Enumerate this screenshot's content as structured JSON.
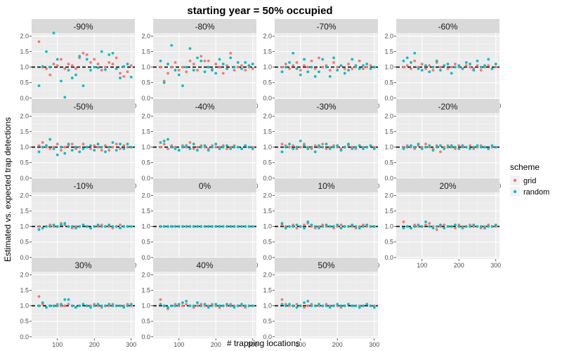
{
  "chart_data": {
    "type": "scatter",
    "title": "starting year = 50% occupied",
    "xlabel": "# trapping locations",
    "ylabel": "Estimated vs. expected trap detections",
    "xlim": [
      30,
      310
    ],
    "ylim": [
      -0.05,
      2.1
    ],
    "x_ticks": [
      100,
      200,
      300
    ],
    "y_ticks": [
      "0.0",
      "0.5",
      "1.0",
      "1.5",
      "2.0"
    ],
    "reference_line": 1.0,
    "grid": true,
    "legend": {
      "title": "scheme",
      "placement": "right",
      "entries": [
        {
          "label": "grid",
          "color": "#F8766D"
        },
        {
          "label": "random",
          "color": "#00BFC4"
        }
      ]
    },
    "x": [
      50,
      60,
      70,
      80,
      90,
      100,
      110,
      120,
      130,
      140,
      150,
      160,
      170,
      180,
      190,
      200,
      210,
      220,
      230,
      240,
      250,
      260,
      270,
      280,
      290,
      300
    ],
    "panels": [
      {
        "label": "-90%",
        "grid": [
          1.82,
          1.0,
          0.95,
          0.75,
          1.1,
          1.05,
          1.25,
          0.95,
          1.1,
          1.05,
          0.95,
          1.3,
          1.45,
          1.4,
          1.15,
          1.25,
          1.1,
          0.9,
          1.0,
          1.15,
          1.1,
          1.3,
          0.8,
          0.7,
          0.85,
          1.05
        ],
        "random": [
          0.4,
          1.02,
          1.5,
          1.0,
          2.1,
          1.25,
          0.55,
          0.03,
          0.9,
          0.65,
          0.75,
          1.35,
          0.4,
          1.25,
          0.9,
          1.0,
          0.98,
          1.5,
          0.92,
          1.4,
          1.45,
          0.95,
          0.65,
          1.02,
          1.1,
          0.68
        ]
      },
      {
        "label": "-80%",
        "grid": [
          1.0,
          0.55,
          0.8,
          1.0,
          1.15,
          0.9,
          1.0,
          0.85,
          1.2,
          1.1,
          0.9,
          1.35,
          1.2,
          1.2,
          0.95,
          1.1,
          1.0,
          0.8,
          1.05,
          1.45,
          0.9,
          1.0,
          1.05,
          0.9,
          1.0,
          0.95
        ],
        "random": [
          1.2,
          0.5,
          1.1,
          1.7,
          0.9,
          0.75,
          0.4,
          1.0,
          1.6,
          0.9,
          1.3,
          1.2,
          0.85,
          1.0,
          0.9,
          0.8,
          1.25,
          1.1,
          0.95,
          1.3,
          1.0,
          1.15,
          0.95,
          1.15,
          1.05,
          1.1
        ]
      },
      {
        "label": "-70%",
        "grid": [
          1.0,
          1.1,
          0.95,
          1.05,
          1.15,
          0.9,
          1.05,
          1.0,
          1.2,
          0.95,
          1.3,
          1.0,
          1.05,
          0.9,
          1.15,
          1.0,
          1.05,
          0.95,
          1.1,
          0.95,
          1.0,
          1.2,
          0.95,
          1.0,
          1.05,
          1.0
        ],
        "random": [
          0.85,
          1.0,
          1.15,
          1.45,
          0.95,
          0.75,
          1.25,
          0.85,
          1.0,
          0.7,
          0.85,
          1.25,
          1.0,
          0.7,
          1.3,
          0.9,
          1.05,
          0.8,
          0.9,
          1.25,
          1.05,
          0.95,
          1.05,
          1.1,
          0.95,
          1.0
        ]
      },
      {
        "label": "-60%",
        "grid": [
          1.0,
          1.05,
          0.95,
          1.2,
          1.0,
          1.1,
          0.95,
          1.05,
          0.9,
          1.15,
          1.0,
          1.05,
          0.95,
          1.0,
          1.1,
          1.0,
          0.95,
          1.05,
          1.0,
          0.95,
          1.05,
          0.9,
          1.0,
          1.05,
          0.95,
          1.0
        ],
        "random": [
          1.2,
          1.3,
          1.15,
          1.45,
          0.95,
          0.9,
          1.05,
          0.85,
          1.0,
          1.2,
          0.9,
          1.05,
          1.1,
          0.8,
          1.0,
          1.05,
          0.95,
          1.15,
          1.1,
          0.9,
          1.2,
          1.0,
          1.05,
          1.25,
          0.95,
          1.1
        ]
      },
      {
        "label": "-50%",
        "grid": [
          1.05,
          1.15,
          1.0,
          0.95,
          1.0,
          1.1,
          0.9,
          1.0,
          1.05,
          1.1,
          0.95,
          1.0,
          1.1,
          1.0,
          0.95,
          1.05,
          1.0,
          0.9,
          1.05,
          0.9,
          1.0,
          1.1,
          0.95,
          1.05,
          1.0,
          1.0
        ],
        "random": [
          0.85,
          1.0,
          1.05,
          1.25,
          0.95,
          0.75,
          1.0,
          0.8,
          1.1,
          0.9,
          1.0,
          0.85,
          0.95,
          1.0,
          1.05,
          0.9,
          1.1,
          1.0,
          0.85,
          1.0,
          1.15,
          0.9,
          1.1,
          0.95,
          1.1,
          1.0
        ]
      },
      {
        "label": "-40%",
        "grid": [
          1.0,
          1.1,
          0.95,
          1.05,
          1.0,
          0.9,
          1.05,
          1.0,
          1.15,
          0.95,
          1.0,
          1.05,
          1.0,
          0.95,
          1.05,
          1.0,
          1.0,
          1.05,
          0.95,
          1.0,
          1.05,
          1.0,
          0.95,
          1.05,
          1.0,
          1.0
        ],
        "random": [
          1.15,
          1.2,
          1.25,
          1.0,
          0.95,
          0.9,
          1.0,
          1.05,
          0.95,
          1.1,
          0.9,
          1.0,
          1.05,
          0.9,
          1.0,
          1.1,
          0.95,
          1.0,
          1.05,
          0.95,
          1.0,
          1.0,
          0.95,
          1.05,
          1.0,
          0.95
        ]
      },
      {
        "label": "-30%",
        "grid": [
          1.1,
          1.05,
          1.0,
          1.05,
          0.95,
          1.0,
          1.1,
          1.0,
          0.95,
          1.05,
          1.0,
          1.1,
          0.95,
          1.0,
          1.05,
          1.0,
          0.95,
          1.0,
          1.05,
          1.0,
          0.95,
          1.05,
          1.0,
          1.0,
          1.05,
          1.0
        ],
        "random": [
          0.85,
          1.0,
          1.1,
          0.95,
          1.0,
          1.2,
          1.05,
          0.95,
          1.0,
          0.85,
          1.05,
          1.0,
          1.1,
          0.95,
          1.0,
          1.05,
          0.9,
          1.0,
          1.1,
          0.95,
          1.0,
          1.05,
          0.95,
          1.0,
          1.05,
          0.95
        ]
      },
      {
        "label": "-20%",
        "grid": [
          1.0,
          1.05,
          1.0,
          0.95,
          1.05,
          1.0,
          1.1,
          1.0,
          0.95,
          1.05,
          0.85,
          1.0,
          1.05,
          1.0,
          0.95,
          1.05,
          1.0,
          1.0,
          1.05,
          0.95,
          1.0,
          1.05,
          1.0,
          0.95,
          1.0,
          1.0
        ],
        "random": [
          0.95,
          1.0,
          1.05,
          1.0,
          1.1,
          0.95,
          1.0,
          1.05,
          0.9,
          1.0,
          1.05,
          0.95,
          1.0,
          1.05,
          1.0,
          0.95,
          1.05,
          1.0,
          0.95,
          1.0,
          1.05,
          1.0,
          1.0,
          0.95,
          1.05,
          1.0
        ]
      },
      {
        "label": "-10%",
        "grid": [
          1.0,
          0.95,
          1.0,
          1.05,
          1.0,
          1.0,
          1.1,
          1.05,
          1.0,
          0.95,
          1.0,
          1.0,
          1.05,
          1.0,
          0.95,
          1.0,
          1.0,
          1.05,
          1.0,
          1.0,
          0.95,
          1.0,
          1.05,
          1.0,
          1.0,
          1.0
        ],
        "random": [
          0.9,
          0.95,
          1.0,
          1.0,
          1.05,
          1.0,
          1.05,
          1.1,
          1.0,
          1.0,
          0.95,
          1.0,
          1.05,
          1.0,
          0.95,
          1.0,
          1.05,
          1.0,
          1.0,
          1.05,
          1.0,
          1.0,
          0.95,
          1.0,
          1.0,
          1.0
        ]
      },
      {
        "label": "0%",
        "grid": [
          1.0,
          1.0,
          1.0,
          1.0,
          1.0,
          1.0,
          1.0,
          1.0,
          1.0,
          1.0,
          1.0,
          1.0,
          1.0,
          1.0,
          1.0,
          1.0,
          1.0,
          1.0,
          1.0,
          1.0,
          1.0,
          1.0,
          1.0,
          1.0,
          1.0,
          1.0
        ],
        "random": [
          1.0,
          1.0,
          1.0,
          1.0,
          1.0,
          1.0,
          1.0,
          1.0,
          1.0,
          1.0,
          1.0,
          1.0,
          1.0,
          1.0,
          1.0,
          1.0,
          1.0,
          1.0,
          1.0,
          1.0,
          1.0,
          1.0,
          1.0,
          1.0,
          1.0,
          1.0
        ]
      },
      {
        "label": "10%",
        "grid": [
          1.05,
          1.0,
          1.0,
          1.05,
          0.95,
          1.0,
          1.05,
          1.1,
          1.0,
          0.95,
          1.0,
          1.05,
          1.0,
          1.0,
          0.95,
          1.0,
          1.05,
          1.0,
          1.0,
          1.0,
          0.95,
          1.0,
          1.05,
          1.0,
          1.0,
          1.0
        ],
        "random": [
          1.1,
          0.95,
          1.0,
          1.0,
          1.05,
          1.0,
          0.95,
          1.15,
          1.05,
          1.0,
          0.95,
          1.0,
          1.05,
          1.0,
          1.0,
          1.05,
          0.95,
          1.0,
          1.0,
          1.05,
          1.0,
          0.95,
          1.0,
          1.05,
          1.0,
          1.0
        ]
      },
      {
        "label": "20%",
        "grid": [
          1.15,
          1.0,
          0.95,
          1.05,
          1.0,
          1.0,
          1.05,
          1.1,
          1.0,
          0.9,
          1.0,
          1.05,
          1.0,
          1.0,
          0.95,
          1.05,
          1.0,
          1.0,
          1.05,
          1.0,
          1.0,
          0.95,
          1.0,
          1.05,
          1.0,
          1.0
        ],
        "random": [
          0.95,
          1.0,
          0.95,
          1.0,
          1.05,
          1.0,
          1.15,
          1.0,
          0.95,
          1.0,
          1.05,
          0.95,
          1.0,
          1.0,
          1.05,
          1.0,
          0.95,
          1.0,
          1.0,
          1.05,
          1.0,
          1.0,
          0.95,
          1.0,
          1.0,
          1.05
        ]
      },
      {
        "label": "30%",
        "grid": [
          1.3,
          1.05,
          0.95,
          1.0,
          1.0,
          1.05,
          1.0,
          1.0,
          1.05,
          1.0,
          0.95,
          1.0,
          1.05,
          1.0,
          1.0,
          1.05,
          1.0,
          0.95,
          1.0,
          1.0,
          1.05,
          1.0,
          1.0,
          1.0,
          1.05,
          1.0
        ],
        "random": [
          1.0,
          1.1,
          0.95,
          1.0,
          1.0,
          1.0,
          1.05,
          1.2,
          1.2,
          1.0,
          0.95,
          1.0,
          1.05,
          1.0,
          0.95,
          1.0,
          1.05,
          1.0,
          1.0,
          1.05,
          1.0,
          1.0,
          1.0,
          0.95,
          1.0,
          1.05
        ]
      },
      {
        "label": "40%",
        "grid": [
          1.2,
          1.0,
          0.9,
          1.0,
          1.05,
          1.0,
          1.0,
          1.05,
          1.0,
          0.95,
          1.0,
          1.05,
          1.0,
          1.0,
          1.05,
          1.0,
          0.95,
          1.0,
          1.0,
          1.05,
          1.0,
          1.0,
          1.0,
          0.95,
          1.0,
          1.0
        ],
        "random": [
          1.05,
          1.0,
          0.95,
          1.0,
          1.0,
          1.05,
          1.1,
          1.15,
          1.0,
          1.0,
          1.1,
          1.0,
          1.05,
          0.95,
          1.0,
          1.05,
          1.0,
          1.0,
          1.05,
          1.0,
          0.95,
          1.0,
          1.05,
          1.0,
          1.0,
          1.0
        ]
      },
      {
        "label": "50%",
        "grid": [
          1.2,
          1.05,
          1.0,
          1.0,
          1.05,
          1.0,
          0.95,
          1.0,
          1.05,
          1.0,
          1.0,
          1.0,
          1.05,
          1.0,
          1.0,
          1.0,
          0.95,
          1.0,
          1.05,
          1.0,
          1.0,
          1.0,
          1.0,
          1.05,
          1.0,
          1.0
        ],
        "random": [
          1.05,
          1.0,
          1.05,
          1.0,
          0.95,
          1.0,
          1.1,
          1.15,
          1.0,
          1.0,
          1.05,
          1.0,
          1.0,
          0.95,
          1.0,
          1.05,
          1.0,
          1.0,
          1.05,
          1.0,
          1.0,
          0.95,
          1.0,
          1.05,
          1.0,
          0.95
        ]
      }
    ]
  }
}
